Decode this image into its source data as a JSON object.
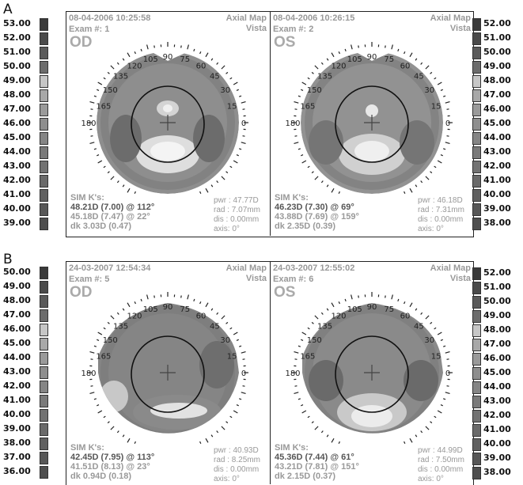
{
  "panels": [
    {
      "label": "A",
      "left_scale": [
        "53.00",
        "52.00",
        "51.00",
        "50.00",
        "49.00",
        "48.00",
        "47.00",
        "46.00",
        "45.00",
        "44.00",
        "43.00",
        "42.00",
        "41.00",
        "40.00",
        "39.00"
      ],
      "right_scale": [
        "52.00",
        "51.00",
        "50.00",
        "49.00",
        "48.00",
        "47.00",
        "46.00",
        "45.00",
        "44.00",
        "43.00",
        "42.00",
        "41.00",
        "40.00",
        "39.00",
        "38.00"
      ],
      "left_scale_colors": [
        "#3a3a3a",
        "#4a4a4a",
        "#5a5a5a",
        "#6c6c6c",
        "#c6c6c6",
        "#a8a8a8",
        "#9a9a9a",
        "#8e8e8e",
        "#858585",
        "#7a7a7a",
        "#727272",
        "#6a6a6a",
        "#606060",
        "#575757",
        "#4e4e4e"
      ],
      "right_scale_colors": [
        "#3a3a3a",
        "#4a4a4a",
        "#5a5a5a",
        "#6c6c6c",
        "#c6c6c6",
        "#a8a8a8",
        "#9a9a9a",
        "#8e8e8e",
        "#858585",
        "#7a7a7a",
        "#727272",
        "#6a6a6a",
        "#606060",
        "#575757",
        "#4e4e4e"
      ],
      "maps": [
        {
          "date": "08-04-2006 10:25:58",
          "exam": "Exam #: 1",
          "map_type": "Axial Map",
          "device": "Vista",
          "eye": "OD",
          "simk_title": "SIM K's:",
          "k1": "48.21D (7.00) @ 112°",
          "k2": "45.18D (7.47) @ 22°",
          "dk": "dk  3.03D (0.47)",
          "pwr": "pwr : 47.77D",
          "rad": "rad : 7.07mm",
          "dis": "dis : 0.00mm",
          "axis": "axis:  0°"
        },
        {
          "date": "08-04-2006 10:26:15",
          "exam": "Exam #: 2",
          "map_type": "Axial Map",
          "device": "Vista",
          "eye": "OS",
          "simk_title": "SIM K's:",
          "k1": "46.23D (7.30) @ 69°",
          "k2": "43.88D (7.69) @ 159°",
          "dk": "dk  2.35D (0.39)",
          "pwr": "pwr : 46.18D",
          "rad": "rad : 7.31mm",
          "dis": "dis : 0.00mm",
          "axis": "axis:  0°"
        }
      ]
    },
    {
      "label": "B",
      "left_scale": [
        "50.00",
        "49.00",
        "48.00",
        "47.00",
        "46.00",
        "45.00",
        "44.00",
        "43.00",
        "42.00",
        "41.00",
        "40.00",
        "39.00",
        "38.00",
        "37.00",
        "36.00"
      ],
      "right_scale": [
        "52.00",
        "51.00",
        "50.00",
        "49.00",
        "48.00",
        "47.00",
        "46.00",
        "45.00",
        "44.00",
        "43.00",
        "42.00",
        "41.00",
        "40.00",
        "39.00",
        "38.00"
      ],
      "left_scale_colors": [
        "#3a3a3a",
        "#4a4a4a",
        "#5a5a5a",
        "#6c6c6c",
        "#c6c6c6",
        "#a8a8a8",
        "#9a9a9a",
        "#8e8e8e",
        "#858585",
        "#7a7a7a",
        "#727272",
        "#6a6a6a",
        "#606060",
        "#575757",
        "#4e4e4e"
      ],
      "right_scale_colors": [
        "#3a3a3a",
        "#4a4a4a",
        "#5a5a5a",
        "#6c6c6c",
        "#c6c6c6",
        "#a8a8a8",
        "#9a9a9a",
        "#8e8e8e",
        "#858585",
        "#7a7a7a",
        "#727272",
        "#6a6a6a",
        "#606060",
        "#575757",
        "#4e4e4e"
      ],
      "maps": [
        {
          "date": "24-03-2007 12:54:34",
          "exam": "Exam #: 5",
          "map_type": "Axial Map",
          "device": "Vista",
          "eye": "OD",
          "simk_title": "SIM K's:",
          "k1": "42.45D (7.95) @ 113°",
          "k2": "41.51D (8.13) @ 23°",
          "dk": "dk  0.94D (0.18)",
          "pwr": "pwr : 40.93D",
          "rad": "rad : 8.25mm",
          "dis": "dis : 0.00mm",
          "axis": "axis:  0°"
        },
        {
          "date": "24-03-2007 12:55:02",
          "exam": "Exam #: 6",
          "map_type": "Axial Map",
          "device": "Vista",
          "eye": "OS",
          "simk_title": "SIM K's:",
          "k1": "45.36D (7.44) @ 61°",
          "k2": "43.21D (7.81) @ 151°",
          "dk": "dk  2.15D (0.37)",
          "pwr": "pwr : 44.99D",
          "rad": "rad : 7.50mm",
          "dis": "dis : 0.00mm",
          "axis": "axis:  0°"
        }
      ]
    }
  ],
  "angle_labels": [
    "15",
    "30",
    "45",
    "60",
    "75",
    "90",
    "105",
    "120",
    "135",
    "150",
    "165",
    "180",
    "0"
  ]
}
